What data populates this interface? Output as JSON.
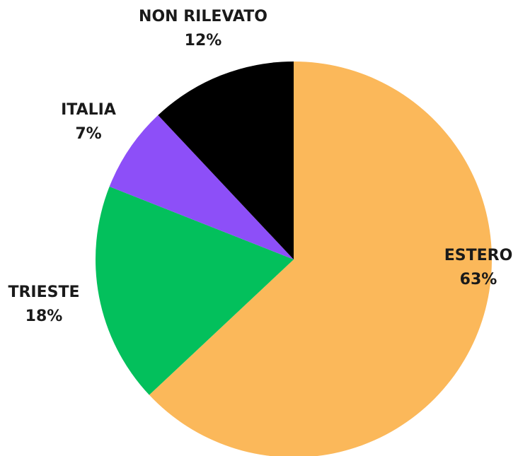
{
  "chart_data": {
    "type": "pie",
    "slices": [
      {
        "name": "ESTERO",
        "value": 63,
        "label": "63%",
        "color": "#fbb85a"
      },
      {
        "name": "TRIESTE",
        "value": 18,
        "label": "18%",
        "color": "#03c05c"
      },
      {
        "name": "ITALIA",
        "value": 7,
        "label": "7%",
        "color": "#8d4ff8"
      },
      {
        "name": "NON RILEVATO",
        "value": 12,
        "label": "12%",
        "color": "#000000"
      }
    ],
    "start": "top",
    "direction": "clockwise",
    "legend": "none"
  }
}
